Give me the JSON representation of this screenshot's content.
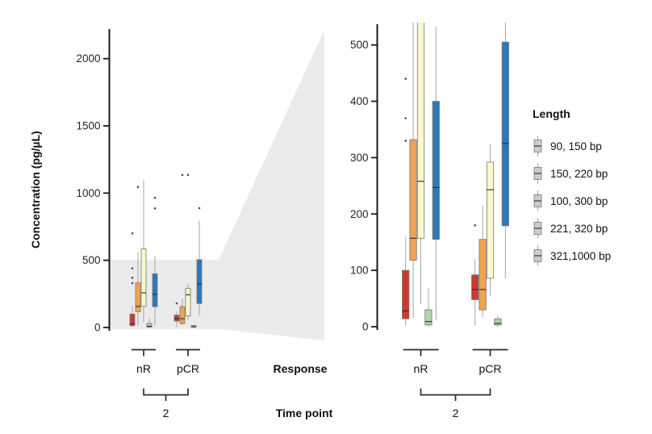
{
  "figure": {
    "y_axis_label": "Concentration (pg/µL)",
    "response_label": "Response",
    "time_point_label": "Time point"
  },
  "legend": {
    "title": "Length",
    "items": [
      {
        "label": "90, 150 bp",
        "color": "#cb3b2b"
      },
      {
        "label": "150, 220 bp",
        "color": "#f0a351"
      },
      {
        "label": "100, 300 bp",
        "color": "#faf8cc"
      },
      {
        "label": "221, 320 bp",
        "color": "#a9d8a1"
      },
      {
        "label": "321,1000 bp",
        "color": "#2e78b7"
      }
    ]
  },
  "chart_data": {
    "type": "boxplot",
    "ylabel": "Concentration (pg/µL)",
    "legend_title": "Length",
    "zoom_region": [
      0,
      540
    ],
    "panels": [
      {
        "name": "overview",
        "ylim": [
          0,
          2200
        ],
        "yticks": [
          0,
          500,
          1000,
          1500,
          2000
        ],
        "groups": [
          "nR",
          "pCR"
        ],
        "time_point": "2"
      },
      {
        "name": "zoom",
        "ylim": [
          0,
          540
        ],
        "yticks": [
          0,
          100,
          200,
          300,
          400,
          500
        ],
        "groups": [
          "nR",
          "pCR"
        ],
        "time_point": "2"
      }
    ],
    "series": [
      {
        "name": "90, 150 bp",
        "color": "#cb3b2b",
        "groups": {
          "nR": {
            "whislo": 2,
            "q1": 14,
            "med": 28,
            "q3": 100,
            "whishi": 160,
            "outliers": [
              330,
              370,
              440,
              700
            ]
          },
          "pCR": {
            "whislo": 2,
            "q1": 48,
            "med": 66,
            "q3": 92,
            "whishi": 120,
            "outliers": [
              180
            ]
          }
        }
      },
      {
        "name": "150, 220 bp",
        "color": "#f0a351",
        "groups": {
          "nR": {
            "whislo": 15,
            "q1": 118,
            "med": 157,
            "q3": 332,
            "whishi": 560,
            "outliers": [
              1045
            ]
          },
          "pCR": {
            "whislo": 17,
            "q1": 30,
            "med": 66,
            "q3": 155,
            "whishi": 215,
            "outliers": [
              1135
            ]
          }
        }
      },
      {
        "name": "100, 300 bp",
        "color": "#faf8cc",
        "groups": {
          "nR": {
            "whislo": 40,
            "q1": 157,
            "med": 258,
            "q3": 585,
            "whishi": 1095,
            "outliers": []
          },
          "pCR": {
            "whislo": 55,
            "q1": 86,
            "med": 243,
            "q3": 292,
            "whishi": 325,
            "outliers": [
              1135
            ]
          }
        }
      },
      {
        "name": "221, 320 bp",
        "color": "#a9d8a1",
        "groups": {
          "nR": {
            "whislo": 0,
            "q1": 3,
            "med": 9,
            "q3": 30,
            "whishi": 68,
            "outliers": []
          },
          "pCR": {
            "whislo": 0,
            "q1": 3,
            "med": 6,
            "q3": 14,
            "whishi": 20,
            "outliers": []
          }
        }
      },
      {
        "name": "321,1000 bp",
        "color": "#2e78b7",
        "groups": {
          "nR": {
            "whislo": 12,
            "q1": 155,
            "med": 247,
            "q3": 400,
            "whishi": 533,
            "outliers": [
              965,
              886
            ]
          },
          "pCR": {
            "whislo": 86,
            "q1": 179,
            "med": 325,
            "q3": 505,
            "whishi": 795,
            "outliers": [
              888
            ]
          }
        }
      }
    ]
  }
}
